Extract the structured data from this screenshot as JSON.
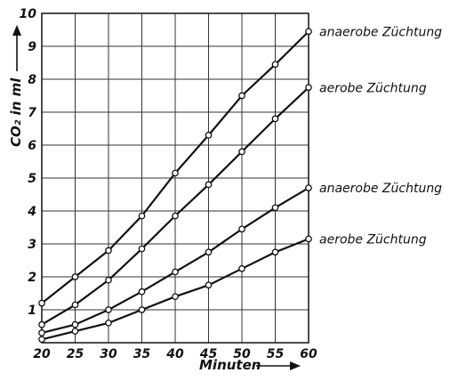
{
  "chart_data": {
    "type": "line",
    "xlabel": "Minuten",
    "ylabel": "CO₂ in ml",
    "x": [
      20,
      25,
      30,
      35,
      40,
      45,
      50,
      55,
      60
    ],
    "xlim": [
      20,
      60
    ],
    "ylim": [
      0,
      10
    ],
    "x_ticks": [
      "20",
      "25",
      "30",
      "35",
      "40",
      "45",
      "50",
      "55",
      "60"
    ],
    "y_ticks": [
      "1",
      "2",
      "3",
      "4",
      "5",
      "6",
      "7",
      "8",
      "9",
      "10"
    ],
    "grid": true,
    "series": [
      {
        "name": "anaerobe Züchtung",
        "values": [
          1.2,
          2.0,
          2.8,
          3.85,
          5.15,
          6.3,
          7.5,
          8.45,
          9.45
        ]
      },
      {
        "name": "aerobe Züchtung",
        "values": [
          0.55,
          1.15,
          1.9,
          2.85,
          3.85,
          4.8,
          5.8,
          6.8,
          7.75
        ]
      },
      {
        "name": "anaerobe Züchtung",
        "values": [
          0.3,
          0.55,
          1.0,
          1.55,
          2.15,
          2.75,
          3.45,
          4.1,
          4.7
        ]
      },
      {
        "name": "aerobe Züchtung",
        "values": [
          0.1,
          0.35,
          0.6,
          1.0,
          1.4,
          1.75,
          2.25,
          2.75,
          3.15
        ]
      }
    ]
  }
}
